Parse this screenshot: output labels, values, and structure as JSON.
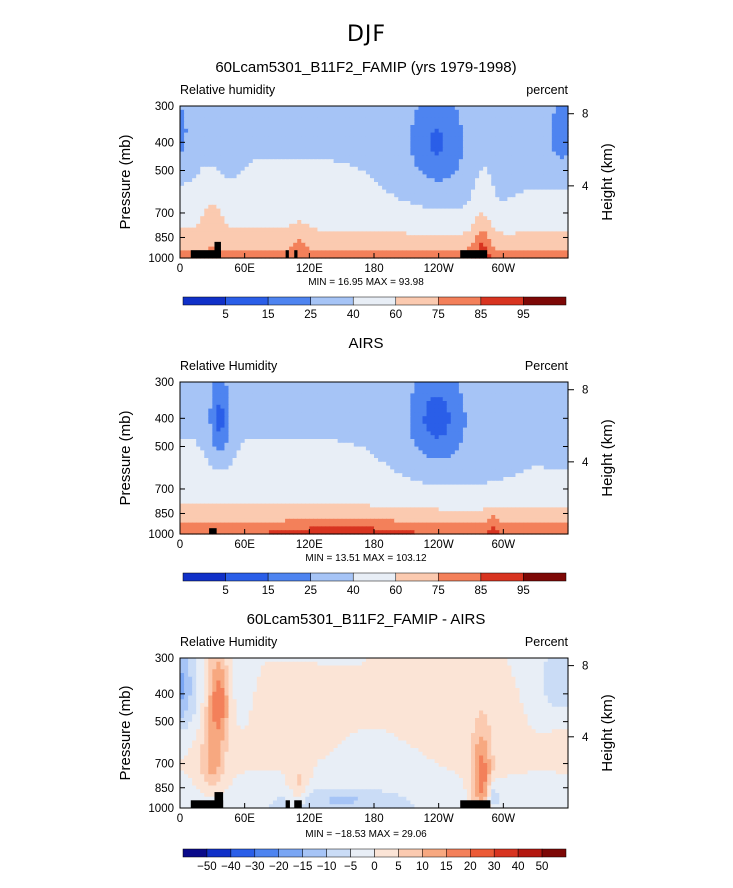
{
  "figure": {
    "title": "DJF"
  },
  "axes": {
    "ylabel": "Pressure (mb)",
    "ylabel_right": "Height (km)",
    "y_ticks": [
      "300",
      "400",
      "500",
      "700",
      "850",
      "1000"
    ],
    "y_tick_values": [
      300,
      400,
      500,
      700,
      850,
      1000
    ],
    "right_ticks": [
      "8",
      "4"
    ],
    "right_tick_values": [
      8,
      4
    ],
    "x_ticks": [
      "0",
      "60E",
      "120E",
      "180",
      "120W",
      "60W"
    ],
    "x_tick_values": [
      0,
      60,
      120,
      180,
      240,
      300
    ],
    "xlim": [
      0,
      360
    ]
  },
  "chart_data": [
    {
      "type": "heatmap",
      "title": "60Lcam5301_B11F2_FAMIP (yrs 1979-1998)",
      "left_label": "Relative humidity",
      "right_label": "percent",
      "stats": "MIN =   16.95   MAX =   93.98",
      "min": 16.95,
      "max": 93.98,
      "colorbar": {
        "levels": [
          "5",
          "15",
          "25",
          "40",
          "60",
          "75",
          "85",
          "95"
        ]
      }
    },
    {
      "type": "heatmap",
      "title": "AIRS",
      "left_label": "Relative Humidity",
      "right_label": "Percent",
      "stats": "MIN =   13.51   MAX = 103.12",
      "min": 13.51,
      "max": 103.12,
      "colorbar": {
        "levels": [
          "5",
          "15",
          "25",
          "40",
          "60",
          "75",
          "85",
          "95"
        ]
      }
    },
    {
      "type": "heatmap",
      "title": "60Lcam5301_B11F2_FAMIP - AIRS",
      "left_label": "Relative Humidity",
      "right_label": "Percent",
      "stats": "MIN = −18.53   MAX =   29.06",
      "min": -18.53,
      "max": 29.06,
      "colorbar": {
        "levels": [
          "−50",
          "−40",
          "−30",
          "−20",
          "−15",
          "−10",
          "−5",
          "0",
          "5",
          "10",
          "15",
          "20",
          "30",
          "40",
          "50"
        ]
      }
    }
  ],
  "colors": {
    "palette": [
      "#0a0a8a",
      "#1030c8",
      "#2a5ee8",
      "#4e84f0",
      "#7aa6f4",
      "#a6c4f6",
      "#cadcf6",
      "#e8eef6",
      "#fbe4d6",
      "#fbcab0",
      "#f7a880",
      "#f3805a",
      "#ec5a36",
      "#d83420",
      "#b41810",
      "#7d0806"
    ]
  }
}
